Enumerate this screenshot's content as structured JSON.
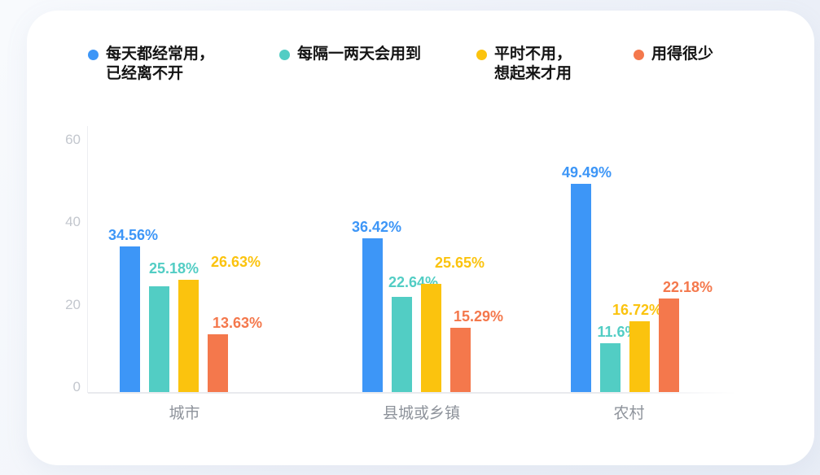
{
  "legend": {
    "items": [
      {
        "line1": "每天都经常用，",
        "line2": "已经离不开",
        "color": "#3D96F7"
      },
      {
        "line1": "每隔一两天会用到",
        "line2": "",
        "color": "#52CDC4"
      },
      {
        "line1": "平时不用，",
        "line2": "想起来才用",
        "color": "#FBC30E"
      },
      {
        "line1": "用得很少",
        "line2": "",
        "color": "#F4784C"
      }
    ]
  },
  "chart_data": {
    "type": "bar",
    "title": "",
    "categories": [
      "城市",
      "县城或乡镇",
      "农村"
    ],
    "series": [
      {
        "name": "每天都经常用，已经离不开",
        "color": "#3D96F7",
        "values": [
          34.56,
          36.42,
          49.49
        ],
        "data_labels": [
          "34.56%",
          "36.42%",
          "49.49%"
        ]
      },
      {
        "name": "每隔一两天会用到",
        "color": "#52CDC4",
        "values": [
          25.18,
          22.64,
          11.6
        ],
        "data_labels": [
          "25.18%",
          "22.64%",
          "11.6%"
        ]
      },
      {
        "name": "平时不用，想起来才用",
        "color": "#FBC30E",
        "values": [
          26.63,
          25.65,
          16.72
        ],
        "data_labels": [
          "26.63%",
          "25.65%",
          "16.72%"
        ]
      },
      {
        "name": "用得很少",
        "color": "#F4784C",
        "values": [
          13.63,
          15.29,
          22.18
        ],
        "data_labels": [
          "13.63%",
          "15.29%",
          "22.18%"
        ]
      }
    ],
    "unit": "%",
    "xlabel": "",
    "ylabel": "",
    "y_ticks": [
      0,
      20,
      40,
      60
    ],
    "ylim": [
      0,
      60
    ],
    "grid": false,
    "legend_position": "top"
  },
  "colors": {
    "axis_text": "#C3C7CE",
    "category_text": "#8E939B",
    "axis_line": "#E9EAEE",
    "card_bg": "#FFFFFF"
  }
}
